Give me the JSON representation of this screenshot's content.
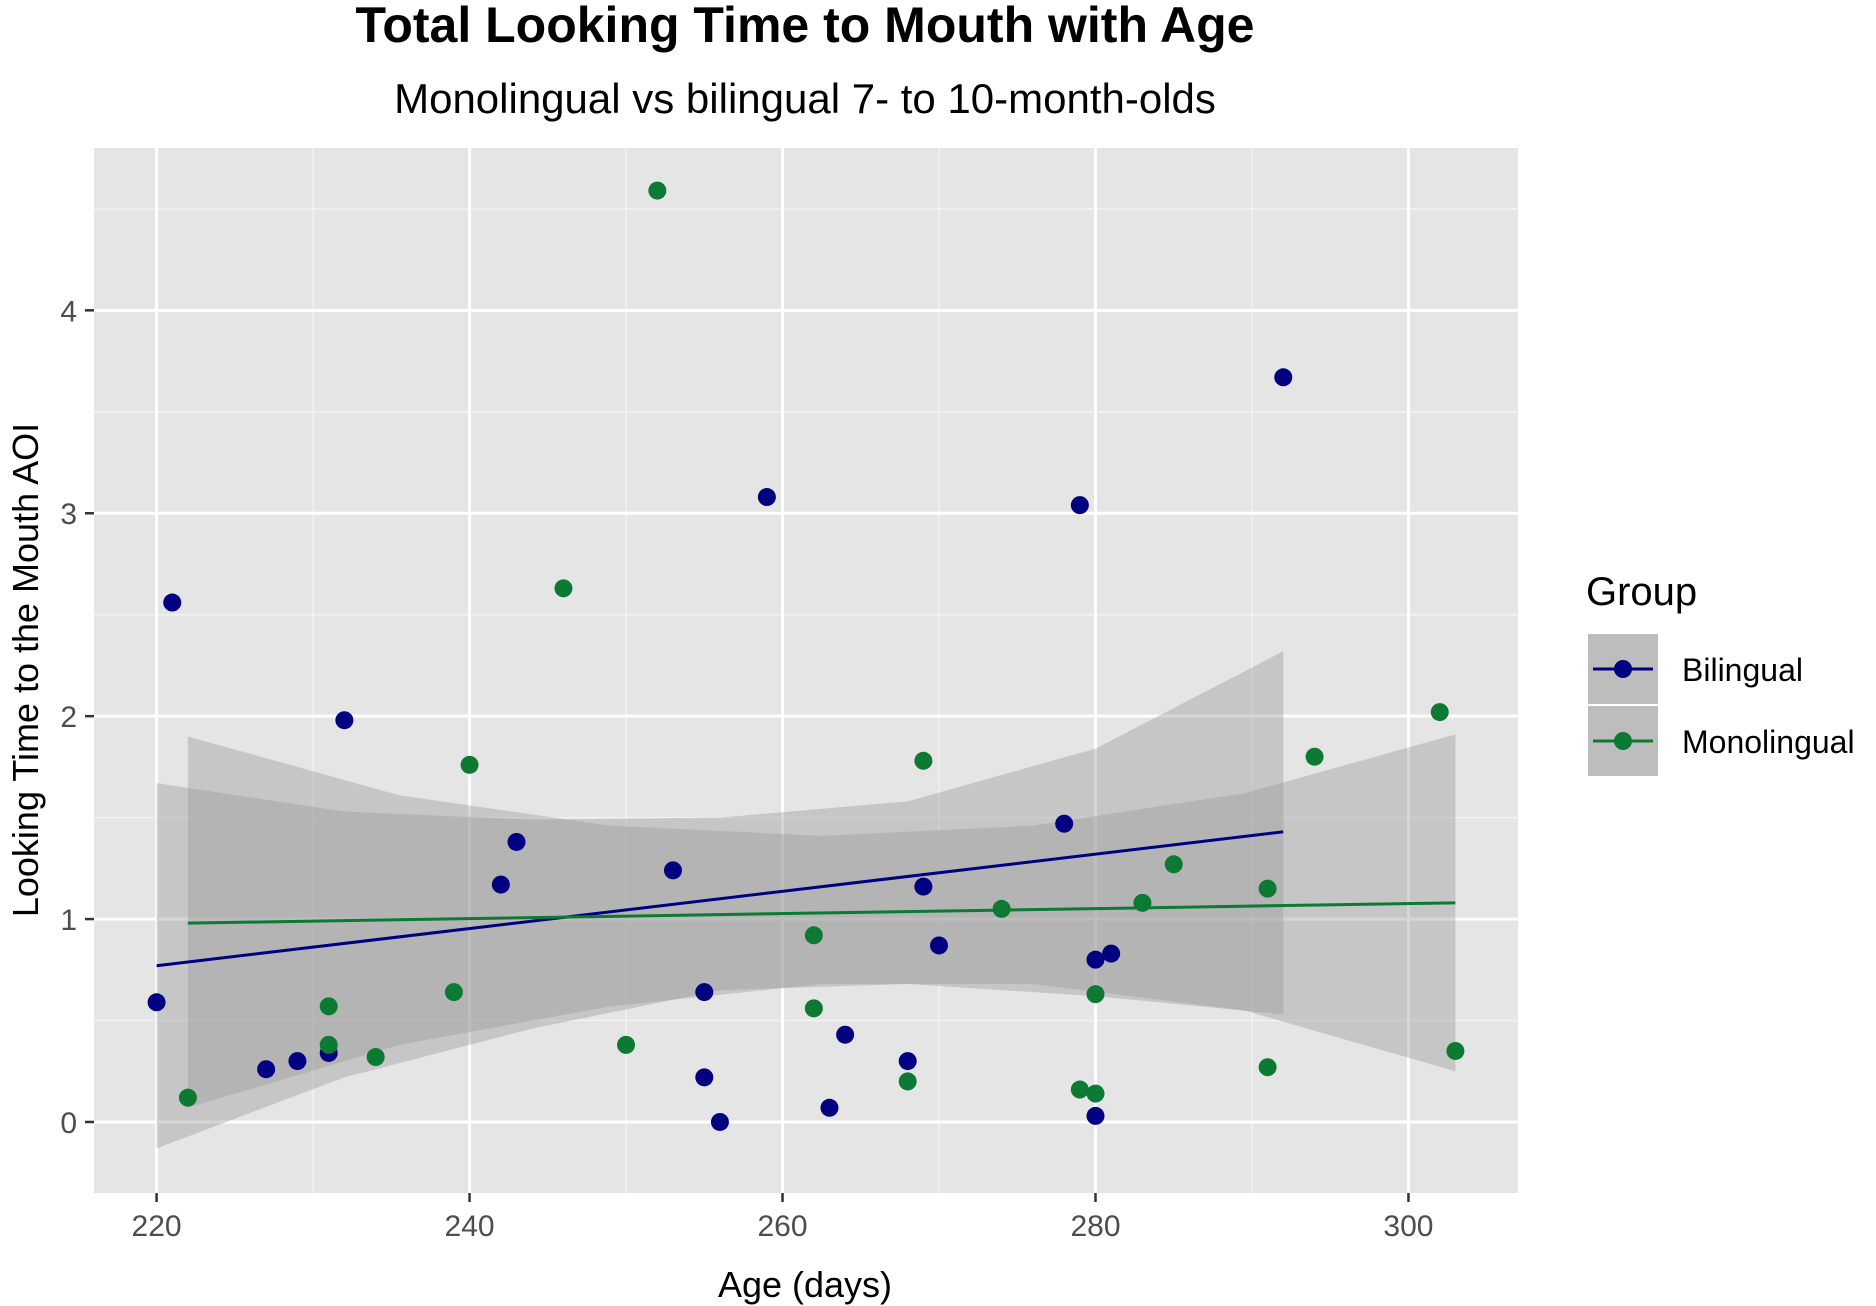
{
  "chart_data": {
    "type": "scatter",
    "title": "Total Looking Time to Mouth with Age",
    "subtitle": "Monolingual vs bilingual 7- to 10-month-olds",
    "xlabel": "Age (days)",
    "ylabel": "Looking Time to the Mouth AOI",
    "xlim": [
      216,
      307
    ],
    "ylim": [
      -0.35,
      4.8
    ],
    "x_ticks": [
      220,
      240,
      260,
      280,
      300
    ],
    "y_ticks": [
      0,
      1,
      2,
      3,
      4
    ],
    "grid": true,
    "legend": {
      "title": "Group",
      "position": "right"
    },
    "series": [
      {
        "name": "Bilingual",
        "color": "#000080",
        "points": [
          [
            220,
            0.59
          ],
          [
            221,
            2.56
          ],
          [
            227,
            0.26
          ],
          [
            229,
            0.3
          ],
          [
            231,
            0.34
          ],
          [
            232,
            1.98
          ],
          [
            242,
            1.17
          ],
          [
            243,
            1.38
          ],
          [
            253,
            1.24
          ],
          [
            255,
            0.64
          ],
          [
            255,
            0.22
          ],
          [
            256,
            0.0
          ],
          [
            259,
            3.08
          ],
          [
            263,
            0.07
          ],
          [
            264,
            0.43
          ],
          [
            268,
            0.3
          ],
          [
            269,
            1.16
          ],
          [
            270,
            0.87
          ],
          [
            278,
            1.47
          ],
          [
            279,
            3.04
          ],
          [
            280,
            0.8
          ],
          [
            280,
            0.03
          ],
          [
            281,
            0.83
          ],
          [
            292,
            3.67
          ]
        ],
        "fit": {
          "x": [
            220,
            292
          ],
          "y": [
            0.77,
            1.43
          ]
        },
        "band": {
          "x": [
            220,
            232,
            244,
            256,
            268,
            280,
            292
          ],
          "upper": [
            1.67,
            1.53,
            1.49,
            1.5,
            1.58,
            1.84,
            2.32
          ],
          "lower": [
            -0.13,
            0.22,
            0.46,
            0.65,
            0.68,
            0.62,
            0.53
          ]
        }
      },
      {
        "name": "Monolingual",
        "color": "#0c7a32",
        "points": [
          [
            222,
            0.12
          ],
          [
            231,
            0.57
          ],
          [
            231,
            0.38
          ],
          [
            234,
            0.32
          ],
          [
            239,
            0.64
          ],
          [
            240,
            1.76
          ],
          [
            246,
            2.63
          ],
          [
            250,
            0.38
          ],
          [
            252,
            4.59
          ],
          [
            262,
            0.92
          ],
          [
            262,
            0.56
          ],
          [
            268,
            0.2
          ],
          [
            269,
            1.78
          ],
          [
            274,
            1.05
          ],
          [
            279,
            0.16
          ],
          [
            280,
            0.63
          ],
          [
            280,
            0.14
          ],
          [
            283,
            1.08
          ],
          [
            285,
            1.27
          ],
          [
            291,
            1.15
          ],
          [
            291,
            0.27
          ],
          [
            294,
            1.8
          ],
          [
            302,
            2.02
          ],
          [
            303,
            0.35
          ]
        ],
        "fit": {
          "x": [
            222,
            303
          ],
          "y": [
            0.98,
            1.08
          ]
        },
        "band": {
          "x": [
            222,
            235.5,
            249,
            262.5,
            276,
            289.5,
            303
          ],
          "upper": [
            1.9,
            1.61,
            1.46,
            1.41,
            1.46,
            1.62,
            1.91
          ],
          "lower": [
            0.07,
            0.38,
            0.57,
            0.68,
            0.68,
            0.55,
            0.25
          ]
        }
      }
    ]
  }
}
